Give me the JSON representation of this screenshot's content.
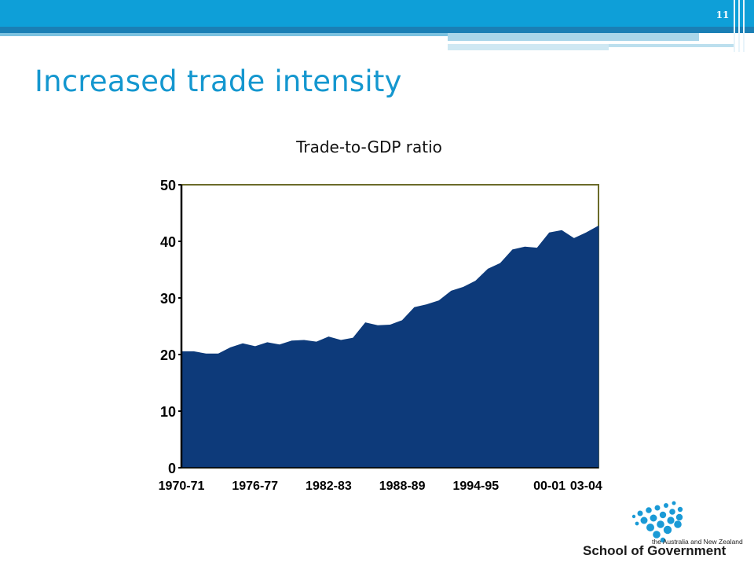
{
  "slide": {
    "number": "11",
    "title": "Increased trade intensity"
  },
  "chart_data": {
    "type": "area",
    "title": "Trade-to-GDP ratio",
    "xlabel": "",
    "ylabel": "",
    "ylim": [
      0,
      50
    ],
    "yticks": [
      0,
      10,
      20,
      30,
      40,
      50
    ],
    "xtick_labels": [
      "1970-71",
      "1976-77",
      "1982-83",
      "1988-89",
      "1994-95",
      "00-01",
      "03-04"
    ],
    "years": [
      "1970-71",
      "1971-72",
      "1972-73",
      "1973-74",
      "1974-75",
      "1975-76",
      "1976-77",
      "1977-78",
      "1978-79",
      "1979-80",
      "1980-81",
      "1981-82",
      "1982-83",
      "1983-84",
      "1984-85",
      "1985-86",
      "1986-87",
      "1987-88",
      "1988-89",
      "1989-90",
      "1990-91",
      "1991-92",
      "1992-93",
      "1993-94",
      "1994-95",
      "1995-96",
      "1996-97",
      "1997-98",
      "1998-99",
      "1999-00",
      "2000-01",
      "2001-02",
      "2002-03",
      "2003-04",
      "2004-05"
    ],
    "values": [
      20.5,
      20.5,
      20.1,
      20.1,
      21.2,
      21.9,
      21.4,
      22.1,
      21.7,
      22.4,
      22.5,
      22.2,
      23.1,
      22.5,
      22.9,
      25.6,
      25.1,
      25.2,
      26.0,
      28.3,
      28.8,
      29.5,
      31.2,
      31.9,
      33.0,
      35.1,
      36.1,
      38.5,
      39.0,
      38.8,
      41.5,
      41.9,
      40.5,
      41.5,
      42.7
    ],
    "grid": false,
    "legend": "none",
    "fill_color": "#0d3a7a",
    "frame_color": "#6b6b2a"
  },
  "logo": {
    "subtitle": "the Australia and New Zealand",
    "name": "School of Government"
  }
}
